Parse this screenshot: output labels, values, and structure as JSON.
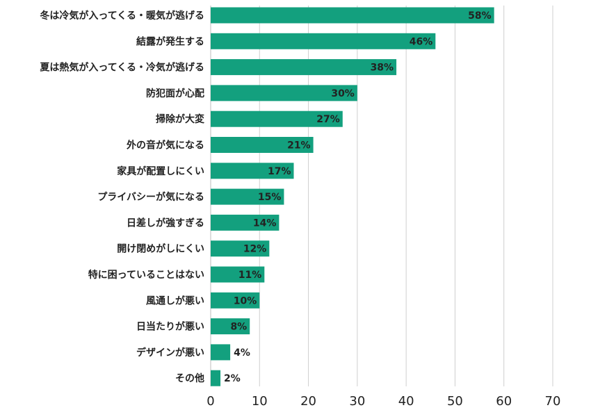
{
  "chart_data": {
    "type": "bar",
    "orientation": "horizontal",
    "categories": [
      "冬は冷気が入ってくる・暖気が逃げる",
      "結露が発生する",
      "夏は熱気が入ってくる・冷気が逃げる",
      "防犯面が心配",
      "掃除が大変",
      "外の音が気になる",
      "家具が配置しにくい",
      "プライバシーが気になる",
      "日差しが強すぎる",
      "開け閉めがしにくい",
      "特に困っていることはない",
      "風通しが悪い",
      "日当たりが悪い",
      "デザインが悪い",
      "その他"
    ],
    "values": [
      58,
      46,
      38,
      30,
      27,
      21,
      17,
      15,
      14,
      12,
      11,
      10,
      8,
      4,
      2
    ],
    "value_labels": [
      "58%",
      "46%",
      "38%",
      "30%",
      "27%",
      "21%",
      "17%",
      "15%",
      "14%",
      "12%",
      "11%",
      "10%",
      "8%",
      "4%",
      "2%"
    ],
    "xlim": [
      0,
      70
    ],
    "xticks": [
      0,
      10,
      20,
      30,
      40,
      50,
      60,
      70
    ],
    "grid": true,
    "title": "",
    "xlabel": "",
    "ylabel": "",
    "bar_color": "#13a07e"
  }
}
